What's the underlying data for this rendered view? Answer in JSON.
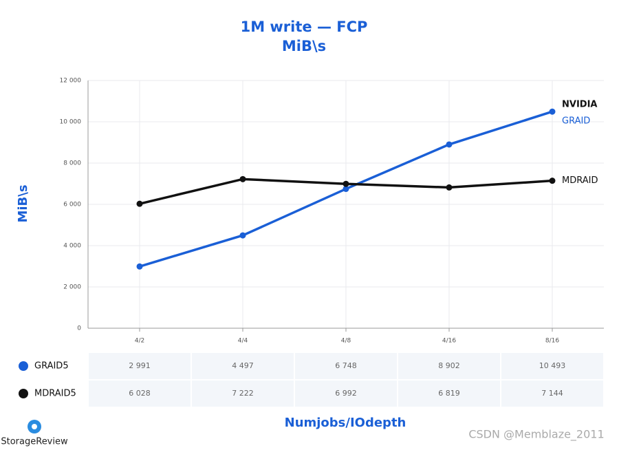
{
  "chart_data": {
    "type": "line",
    "title": "1M write — FCP",
    "subtitle": "MiB\\s",
    "y_label": "MiB\\s",
    "x_label": "Numjobs/IOdepth",
    "categories": [
      "4/2",
      "4/4",
      "4/8",
      "4/16",
      "8/16"
    ],
    "series": [
      {
        "name": "GRAID5",
        "color": "#1a5fd6",
        "values": [
          2991,
          4497,
          6748,
          8902,
          10493
        ],
        "value_labels": [
          "2 991",
          "4 497",
          "6 748",
          "8 902",
          "10 493"
        ]
      },
      {
        "name": "MDRAID5",
        "color": "#111111",
        "values": [
          6028,
          7222,
          6992,
          6819,
          7144
        ],
        "value_labels": [
          "6 028",
          "7 222",
          "6 992",
          "6 819",
          "7 144"
        ]
      }
    ],
    "ylim": [
      0,
      12000
    ],
    "yticks": [
      0,
      {
        "value": 2000,
        "label": "2 000"
      },
      {
        "value": 4000,
        "label": "4 000"
      },
      {
        "value": 6000,
        "label": "6 000"
      },
      {
        "value": 8000,
        "label": "8 000"
      },
      {
        "value": 10000,
        "label": "10 000"
      },
      {
        "value": 12000,
        "label": "12 000"
      }
    ],
    "grid": true,
    "series_end_labels": [
      [
        "NVIDIA",
        "GRAID"
      ],
      [
        "MDRAID"
      ]
    ],
    "source": "StorageReview",
    "watermark": "CSDN @Memblaze_2011"
  }
}
